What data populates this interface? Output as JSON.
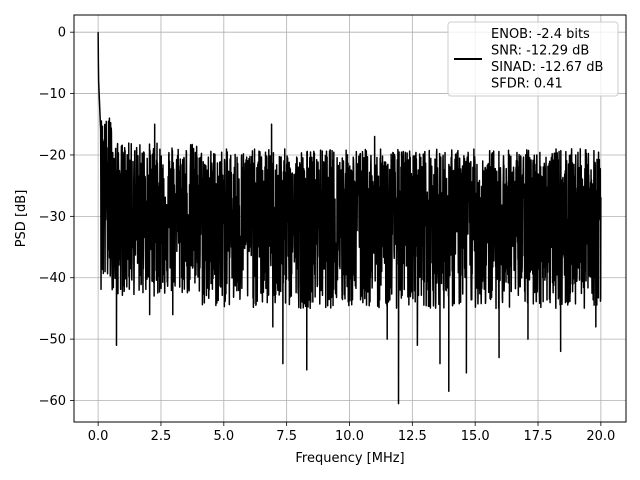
{
  "chart_data": {
    "type": "line",
    "title": "",
    "xlabel": "Frequency [MHz]",
    "ylabel": "PSD [dB]",
    "xlim": [
      -0.96,
      21.0
    ],
    "ylim": [
      -63.5,
      2.8
    ],
    "xticks": [
      0.0,
      2.5,
      5.0,
      7.5,
      10.0,
      12.5,
      15.0,
      17.5,
      20.0
    ],
    "xtick_labels": [
      "0.0",
      "2.5",
      "5.0",
      "7.5",
      "10.0",
      "12.5",
      "15.0",
      "17.5",
      "20.0"
    ],
    "yticks": [
      0,
      -10,
      -20,
      -30,
      -40,
      -50,
      -60
    ],
    "ytick_labels": [
      "0",
      "−10",
      "−20",
      "−30",
      "−40",
      "−50",
      "−60"
    ],
    "grid": true,
    "legend_position": "top-right",
    "legend_lines": [
      "ENOB: -2.4 bits",
      "SNR: -12.29 dB",
      "SINAD: -12.67 dB",
      "SFDR: 0.41"
    ],
    "series": [
      {
        "color": "#000000",
        "x": [
          0.0,
          0.01,
          0.02,
          0.04,
          0.06,
          0.08,
          0.1,
          0.13,
          0.16,
          0.2,
          0.25,
          0.3,
          0.35,
          0.4,
          0.5,
          0.6,
          0.7,
          0.8,
          1.0,
          1.2,
          1.5,
          1.8,
          2.0,
          2.2,
          2.5,
          2.8,
          3.0,
          3.2,
          3.5,
          3.8,
          4.0,
          4.2,
          4.5,
          4.8,
          5.0,
          5.2,
          5.5,
          5.8,
          6.0,
          6.2,
          6.5,
          6.8,
          7.0,
          7.3,
          7.5,
          7.8,
          8.0,
          8.3,
          8.5,
          8.8,
          9.0,
          9.3,
          9.5,
          9.8,
          10.0,
          10.3,
          10.5,
          10.8,
          11.0,
          11.3,
          11.5,
          11.8,
          11.95,
          12.2,
          12.5,
          12.8,
          13.0,
          13.3,
          13.5,
          13.8,
          14.0,
          14.3,
          14.5,
          14.8,
          15.0,
          15.3,
          15.5,
          15.8,
          16.0,
          16.3,
          16.5,
          16.8,
          17.0,
          17.3,
          17.5,
          17.8,
          18.0,
          18.3,
          18.5,
          18.8,
          19.0,
          19.3,
          19.5,
          19.8,
          20.0
        ],
        "y": [
          0.0,
          -5.0,
          -8.0,
          -10.0,
          -12.0,
          -14.0,
          -16.0,
          -18.0,
          -20.0,
          -21.0,
          -22.0,
          -23.0,
          -24.0,
          -25.0,
          -25.5,
          -26.0,
          -26.5,
          -27.0,
          -27.0,
          -27.0,
          -27.5,
          -27.5,
          -28.0,
          -28.0,
          -28.0,
          -28.5,
          -28.5,
          -28.5,
          -29.0,
          -29.0,
          -29.0,
          -29.0,
          -29.0,
          -29.0,
          -29.0,
          -29.0,
          -29.0,
          -29.0,
          -29.0,
          -29.0,
          -29.5,
          -29.5,
          -29.5,
          -29.5,
          -29.5,
          -29.5,
          -29.5,
          -29.5,
          -29.5,
          -29.5,
          -29.5,
          -29.5,
          -29.5,
          -29.5,
          -29.5,
          -29.5,
          -29.5,
          -29.5,
          -29.5,
          -29.5,
          -29.5,
          -29.5,
          -29.5,
          -29.5,
          -29.5,
          -29.5,
          -29.5,
          -29.5,
          -29.5,
          -29.5,
          -29.5,
          -29.5,
          -29.5,
          -29.5,
          -29.5,
          -29.5,
          -29.5,
          -29.5,
          -29.5,
          -29.5,
          -29.5,
          -29.5,
          -29.5,
          -29.5,
          -29.5,
          -29.5,
          -29.5,
          -29.5,
          -29.5,
          -29.5,
          -29.5,
          -29.5,
          -29.5,
          -29.5,
          -29.5
        ],
        "fluctuation_envelope_db": [
          {
            "x_from": 0.1,
            "x_to": 0.6,
            "upper": -14,
            "lower": -42
          },
          {
            "x_from": 0.6,
            "x_to": 4.0,
            "upper": -18,
            "lower": -43
          },
          {
            "x_from": 4.0,
            "x_to": 20.0,
            "upper": -19,
            "lower": -45
          }
        ],
        "deep_minima": [
          {
            "x": 0.73,
            "y": -51
          },
          {
            "x": 2.05,
            "y": -46
          },
          {
            "x": 2.97,
            "y": -46
          },
          {
            "x": 6.95,
            "y": -48
          },
          {
            "x": 7.35,
            "y": -54
          },
          {
            "x": 8.3,
            "y": -55
          },
          {
            "x": 11.5,
            "y": -50
          },
          {
            "x": 11.95,
            "y": -60.5
          },
          {
            "x": 12.7,
            "y": -51
          },
          {
            "x": 13.6,
            "y": -54
          },
          {
            "x": 13.95,
            "y": -58.5
          },
          {
            "x": 14.65,
            "y": -55.5
          },
          {
            "x": 15.95,
            "y": -53
          },
          {
            "x": 17.1,
            "y": -50
          },
          {
            "x": 18.4,
            "y": -52
          },
          {
            "x": 19.8,
            "y": -48
          }
        ],
        "tall_maxima": [
          {
            "x": 0.45,
            "y": -14
          },
          {
            "x": 2.25,
            "y": -15
          },
          {
            "x": 6.9,
            "y": -15
          },
          {
            "x": 11.0,
            "y": -17
          },
          {
            "x": 17.45,
            "y": -20
          },
          {
            "x": 19.0,
            "y": -20
          }
        ]
      }
    ]
  }
}
